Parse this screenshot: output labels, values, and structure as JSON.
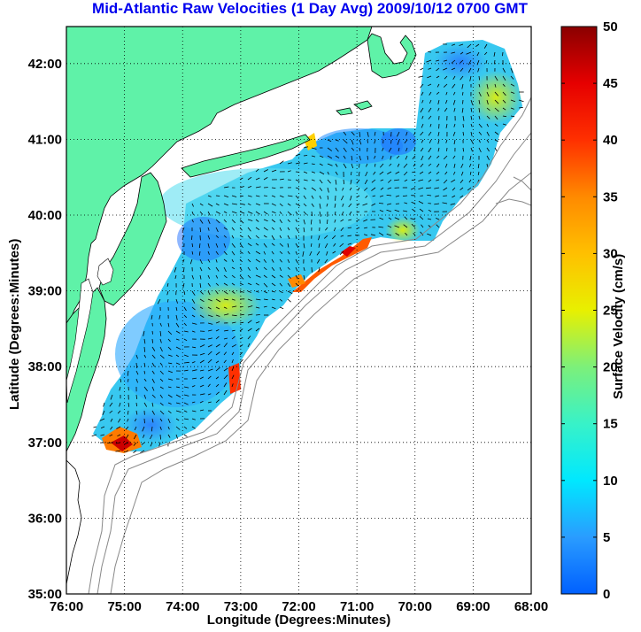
{
  "title": "Mid-Atlantic Raw Velocities (1 Day Avg) 2009/10/12 0700 GMT",
  "xlabel": "Longitude (Degrees:Minutes)",
  "ylabel": "Latitude (Degrees:Minutes)",
  "colorbar": {
    "label": "Surface Velocity (cm/s)",
    "ticks": [
      "0",
      "5",
      "10",
      "15",
      "20",
      "25",
      "30",
      "35",
      "40",
      "45",
      "50"
    ],
    "min": 0,
    "max": 50
  },
  "x_ticks": [
    "76:00",
    "75:00",
    "74:00",
    "73:00",
    "72:00",
    "71:00",
    "70:00",
    "69:00",
    "68:00"
  ],
  "y_ticks": [
    "35:00",
    "36:00",
    "37:00",
    "38:00",
    "39:00",
    "40:00",
    "41:00",
    "42:00"
  ],
  "colors": {
    "land": "#5ff2a8",
    "title": "#0000ee",
    "grid": "#000000",
    "bathymetry": "#888888"
  }
}
